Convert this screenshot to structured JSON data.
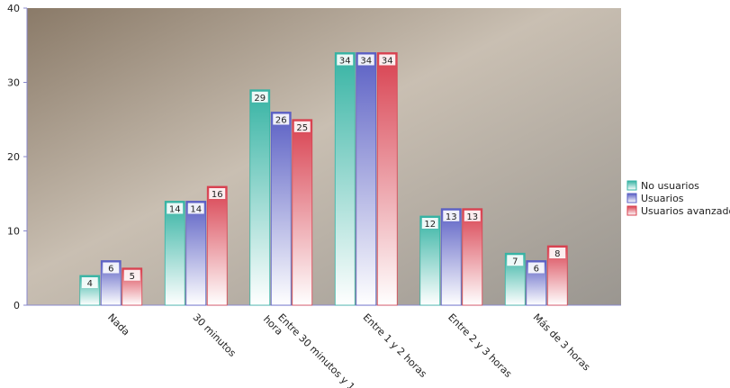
{
  "chart_data": {
    "type": "bar",
    "categories": [
      "Nada",
      "30 minutos",
      "Entre 30 minutos y 1 hora",
      "Entre 1 y 2 horas",
      "Entre 2 y 3 horas",
      "Más de 3 horas"
    ],
    "series": [
      {
        "name": "No usuarios",
        "color": "#35b3a3",
        "values": [
          4,
          14,
          29,
          34,
          12,
          7
        ]
      },
      {
        "name": "Usuarios",
        "color": "#5a5fc4",
        "values": [
          6,
          14,
          26,
          34,
          13,
          6
        ]
      },
      {
        "name": "Usuarios avanzados",
        "color": "#d8404f",
        "values": [
          5,
          16,
          25,
          34,
          13,
          8
        ]
      }
    ],
    "ylim": [
      0,
      40
    ],
    "yticks": [
      0,
      10,
      20,
      30,
      40
    ],
    "legend": "right"
  }
}
